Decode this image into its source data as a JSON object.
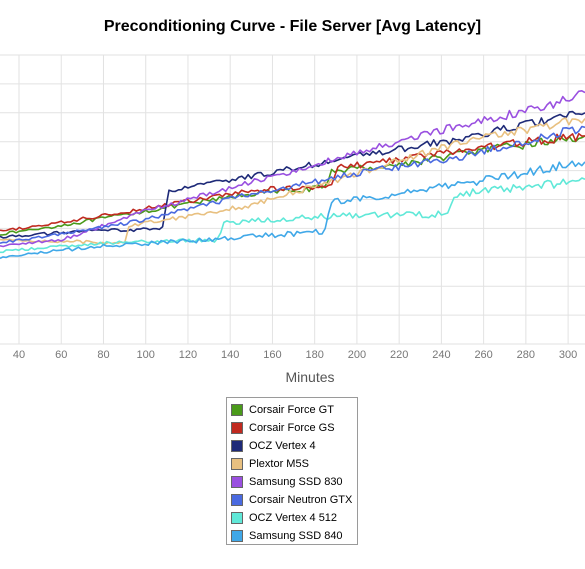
{
  "chart_data": {
    "type": "line",
    "title": "Preconditioning Curve - File Server [Avg Latency]",
    "xlabel": "Minutes",
    "ylabel": "",
    "x_ticks": [
      40,
      60,
      80,
      100,
      120,
      140,
      160,
      180,
      200,
      220,
      240,
      260,
      280,
      300
    ],
    "xlim": [
      31,
      308
    ],
    "ylim": [
      0,
      10
    ],
    "grid": true,
    "legend_position": "bottom",
    "series": [
      {
        "name": "Corsair Force GT",
        "color": "#4a9a1a",
        "points": [
          [
            31,
            3.8
          ],
          [
            60,
            4.1
          ],
          [
            100,
            4.6
          ],
          [
            150,
            5.2
          ],
          [
            185,
            5.4
          ],
          [
            188,
            6.0
          ],
          [
            220,
            6.2
          ],
          [
            250,
            6.6
          ],
          [
            280,
            6.9
          ],
          [
            308,
            7.2
          ]
        ]
      },
      {
        "name": "Corsair Force GS",
        "color": "#c02a20",
        "points": [
          [
            31,
            3.9
          ],
          [
            60,
            4.2
          ],
          [
            100,
            4.7
          ],
          [
            150,
            5.3
          ],
          [
            188,
            5.5
          ],
          [
            191,
            6.1
          ],
          [
            220,
            6.4
          ],
          [
            250,
            6.7
          ],
          [
            280,
            7.0
          ],
          [
            308,
            7.2
          ]
        ]
      },
      {
        "name": "OCZ Vertex 4",
        "color": "#1e2a78",
        "points": [
          [
            31,
            3.7
          ],
          [
            70,
            3.9
          ],
          [
            108,
            4.0
          ],
          [
            111,
            5.3
          ],
          [
            150,
            5.8
          ],
          [
            200,
            6.5
          ],
          [
            250,
            7.1
          ],
          [
            280,
            7.6
          ],
          [
            308,
            8.0
          ]
        ]
      },
      {
        "name": "Plextor M5S",
        "color": "#e8c080",
        "points": [
          [
            31,
            3.6
          ],
          [
            90,
            3.5
          ],
          [
            92,
            4.1
          ],
          [
            150,
            4.8
          ],
          [
            200,
            5.9
          ],
          [
            240,
            6.8
          ],
          [
            270,
            7.3
          ],
          [
            308,
            7.8
          ]
        ]
      },
      {
        "name": "Samsung SSD 830",
        "color": "#9a50e0",
        "points": [
          [
            31,
            3.4
          ],
          [
            60,
            3.6
          ],
          [
            100,
            4.6
          ],
          [
            150,
            5.6
          ],
          [
            200,
            6.6
          ],
          [
            250,
            7.6
          ],
          [
            290,
            8.2
          ],
          [
            308,
            8.7
          ]
        ]
      },
      {
        "name": "Corsair Neutron GTX",
        "color": "#4a6ae0",
        "points": [
          [
            31,
            3.5
          ],
          [
            60,
            3.8
          ],
          [
            100,
            4.3
          ],
          [
            150,
            5.2
          ],
          [
            200,
            5.9
          ],
          [
            250,
            6.5
          ],
          [
            308,
            7.5
          ]
        ]
      },
      {
        "name": "OCZ Vertex 4 512",
        "color": "#60e8d8",
        "points": [
          [
            31,
            3.2
          ],
          [
            80,
            3.5
          ],
          [
            134,
            3.6
          ],
          [
            137,
            4.2
          ],
          [
            180,
            4.4
          ],
          [
            243,
            4.5
          ],
          [
            246,
            5.2
          ],
          [
            280,
            5.4
          ],
          [
            308,
            5.7
          ]
        ]
      },
      {
        "name": "Samsung SSD 840",
        "color": "#40a8e8",
        "points": [
          [
            31,
            3.0
          ],
          [
            80,
            3.4
          ],
          [
            130,
            3.6
          ],
          [
            185,
            3.9
          ],
          [
            188,
            4.9
          ],
          [
            230,
            5.3
          ],
          [
            270,
            5.8
          ],
          [
            308,
            6.3
          ]
        ]
      }
    ]
  }
}
